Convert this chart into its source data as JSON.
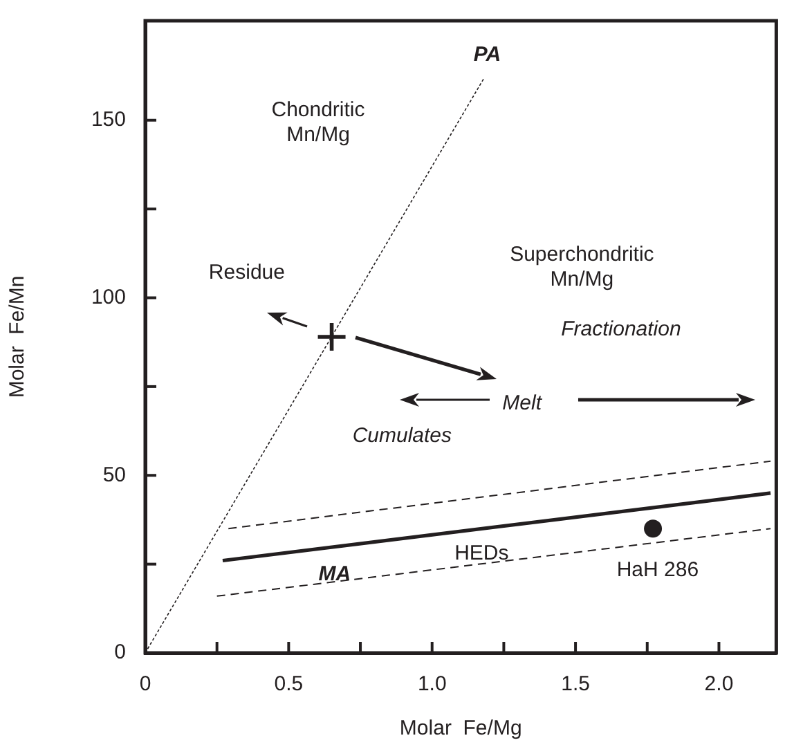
{
  "chart_data": {
    "type": "line",
    "xlabel": "Molar  Fe/Mg",
    "ylabel": "Molar  Fe/Mn",
    "xlim": [
      0,
      2.2
    ],
    "xticks": [
      0,
      {
        "value": 0.25,
        "label": null
      },
      0.5,
      {
        "value": 0.75,
        "label": null
      },
      {
        "value": 1,
        "label": "1.0"
      },
      {
        "value": 1.25,
        "label": null
      },
      1.5,
      {
        "value": 1.75,
        "label": null
      },
      {
        "value": 2,
        "label": "2.0"
      }
    ],
    "ylim": [
      0,
      178
    ],
    "yticks": [
      0,
      {
        "value": 25,
        "label": null
      },
      50,
      {
        "value": 75,
        "label": null
      },
      100,
      {
        "value": 125,
        "label": null
      },
      150
    ],
    "grid": false,
    "legend": false,
    "series": [
      {
        "type": "line",
        "color": "#231f20",
        "line_style": "dotted",
        "marker": "none",
        "x": [
          0,
          1.18
        ],
        "values": [
          0,
          161.7
        ]
      },
      {
        "type": "line",
        "color": "#231f20",
        "line_style": "solid",
        "marker": "none",
        "x": [
          0.27,
          2.18
        ],
        "values": [
          26,
          45
        ]
      },
      {
        "type": "line",
        "color": "#231f20",
        "line_style": "dashed",
        "marker": "none",
        "x": [
          0.29,
          2.18
        ],
        "values": [
          35,
          54
        ]
      },
      {
        "type": "line",
        "color": "#231f20",
        "line_style": "dashed",
        "marker": "none",
        "x": [
          0.25,
          2.18
        ],
        "values": [
          16,
          35
        ]
      },
      {
        "type": "scatter",
        "color": "#231f20",
        "marker": "circle",
        "x": [
          1.77
        ],
        "values": [
          35
        ]
      },
      {
        "type": "scatter",
        "color": "#231f20",
        "marker": "cross",
        "x": [
          0.65
        ],
        "values": [
          89
        ]
      }
    ],
    "annotations": [
      "PA",
      "Chondritic\nMn/Mg",
      "Residue",
      "Superchondritic\nMn/Mg",
      "Fractionation",
      "Melt",
      "Cumulates",
      {
        "text": "MA",
        "x": 0.66,
        "y": 22
      },
      "HEDs",
      "HaH 286"
    ]
  }
}
